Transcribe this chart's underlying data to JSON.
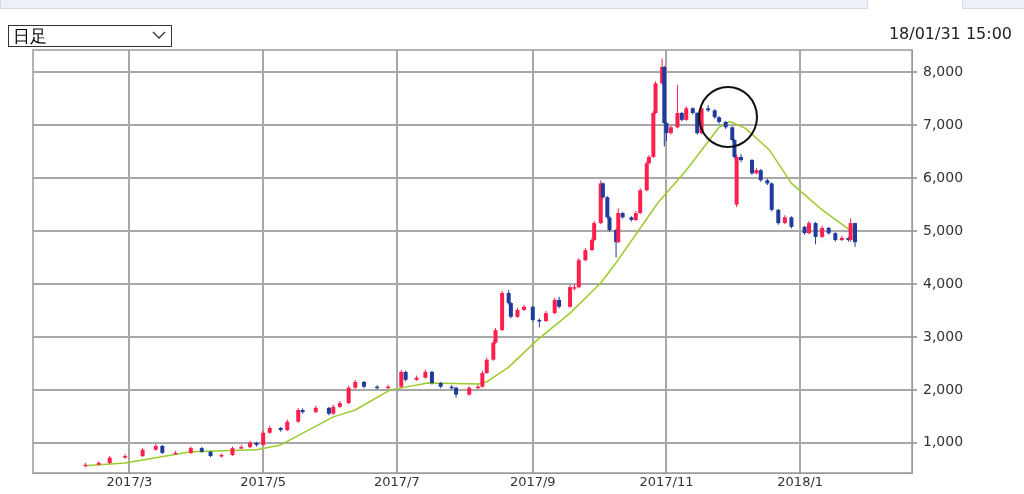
{
  "chart_data": {
    "type": "candlestick",
    "annotations": [
      "日足",
      "18/01/31 15:00"
    ],
    "xlim": [
      "2017-01-16",
      "2018-02-21"
    ],
    "xticks": [
      {
        "value": "2017-03-01",
        "label": "2017/3"
      },
      {
        "value": "2017-05-01",
        "label": "2017/5"
      },
      {
        "value": "2017-07-01",
        "label": "2017/7"
      },
      {
        "value": "2017-09-01",
        "label": "2017/9"
      },
      {
        "value": "2017-11-01",
        "label": "2017/11"
      },
      {
        "value": "2018-01-01",
        "label": "2018/1"
      }
    ],
    "ylim": [
      430,
      8420
    ],
    "yticks": [
      {
        "value": 1000,
        "label": "1,000"
      },
      {
        "value": 2000,
        "label": "2,000"
      },
      {
        "value": 3000,
        "label": "3,000"
      },
      {
        "value": 4000,
        "label": "4,000"
      },
      {
        "value": 5000,
        "label": "5,000"
      },
      {
        "value": 6000,
        "label": "6,000"
      },
      {
        "value": 7000,
        "label": "7,000"
      },
      {
        "value": 8000,
        "label": "8,000"
      }
    ],
    "grid": true,
    "series": [
      {
        "type": "candlestick",
        "x": [
          "2017-02-09",
          "2017-02-15",
          "2017-02-20",
          "2017-02-27",
          "2017-03-07",
          "2017-03-13",
          "2017-03-16",
          "2017-03-22",
          "2017-03-29",
          "2017-04-03",
          "2017-04-07",
          "2017-04-12",
          "2017-04-17",
          "2017-04-21",
          "2017-04-25",
          "2017-04-28",
          "2017-05-01",
          "2017-05-04",
          "2017-05-09",
          "2017-05-12",
          "2017-05-17",
          "2017-05-19",
          "2017-05-25",
          "2017-05-31",
          "2017-06-02",
          "2017-06-05",
          "2017-06-09",
          "2017-06-12",
          "2017-06-16",
          "2017-06-22",
          "2017-06-27",
          "2017-07-03",
          "2017-07-05",
          "2017-07-10",
          "2017-07-14",
          "2017-07-17",
          "2017-07-21",
          "2017-07-26",
          "2017-07-28",
          "2017-08-03",
          "2017-08-07",
          "2017-08-09",
          "2017-08-11",
          "2017-08-14",
          "2017-08-15",
          "2017-08-18",
          "2017-08-21",
          "2017-08-22",
          "2017-08-25",
          "2017-08-28",
          "2017-09-01",
          "2017-09-04",
          "2017-09-07",
          "2017-09-11",
          "2017-09-13",
          "2017-09-18",
          "2017-09-20",
          "2017-09-22",
          "2017-09-25",
          "2017-09-28",
          "2017-09-29",
          "2017-10-02",
          "2017-10-03",
          "2017-10-05",
          "2017-10-06",
          "2017-10-09",
          "2017-10-10",
          "2017-10-12",
          "2017-10-16",
          "2017-10-18",
          "2017-10-20",
          "2017-10-23",
          "2017-10-24",
          "2017-10-26",
          "2017-10-27",
          "2017-10-30",
          "2017-10-31",
          "2017-11-01",
          "2017-11-03",
          "2017-11-06",
          "2017-11-08",
          "2017-11-10",
          "2017-11-13",
          "2017-11-15",
          "2017-11-17",
          "2017-11-20",
          "2017-11-23",
          "2017-11-25",
          "2017-11-28",
          "2017-12-01",
          "2017-12-02",
          "2017-12-03",
          "2017-12-05",
          "2017-12-10",
          "2017-12-12",
          "2017-12-14",
          "2017-12-17",
          "2017-12-19",
          "2017-12-22",
          "2017-12-25",
          "2017-12-28",
          "2018-01-03",
          "2018-01-05",
          "2018-01-08",
          "2018-01-11",
          "2018-01-14",
          "2018-01-17",
          "2018-01-20",
          "2018-01-23",
          "2018-01-24",
          "2018-01-26"
        ],
        "ohlc": [
          [
            560,
            620,
            540,
            585
          ],
          [
            585,
            650,
            570,
            620
          ],
          [
            620,
            750,
            600,
            720
          ],
          [
            720,
            790,
            700,
            750
          ],
          [
            750,
            900,
            730,
            870
          ],
          [
            870,
            980,
            850,
            940
          ],
          [
            940,
            960,
            790,
            810
          ],
          [
            810,
            850,
            780,
            810
          ],
          [
            810,
            930,
            790,
            900
          ],
          [
            900,
            920,
            810,
            830
          ],
          [
            830,
            850,
            730,
            750
          ],
          [
            750,
            800,
            720,
            770
          ],
          [
            770,
            930,
            750,
            900
          ],
          [
            900,
            960,
            880,
            920
          ],
          [
            920,
            1040,
            900,
            1000
          ],
          [
            1000,
            1020,
            930,
            960
          ],
          [
            960,
            1220,
            950,
            1190
          ],
          [
            1190,
            1320,
            1170,
            1280
          ],
          [
            1280,
            1300,
            1210,
            1240
          ],
          [
            1240,
            1440,
            1220,
            1400
          ],
          [
            1400,
            1660,
            1380,
            1620
          ],
          [
            1620,
            1650,
            1550,
            1580
          ],
          [
            1580,
            1700,
            1560,
            1660
          ],
          [
            1660,
            1680,
            1520,
            1550
          ],
          [
            1550,
            1720,
            1530,
            1680
          ],
          [
            1680,
            1790,
            1660,
            1750
          ],
          [
            1750,
            2080,
            1730,
            2040
          ],
          [
            2040,
            2190,
            2020,
            2150
          ],
          [
            2150,
            2170,
            2030,
            2060
          ],
          [
            2060,
            2090,
            2010,
            2040
          ],
          [
            2040,
            2100,
            2020,
            2060
          ],
          [
            2060,
            2380,
            2040,
            2340
          ],
          [
            2340,
            2360,
            2160,
            2190
          ],
          [
            2190,
            2270,
            2170,
            2230
          ],
          [
            2230,
            2380,
            2210,
            2340
          ],
          [
            2340,
            2360,
            2100,
            2130
          ],
          [
            2130,
            2150,
            2030,
            2060
          ],
          [
            2060,
            2090,
            2010,
            2040
          ],
          [
            2040,
            2060,
            1850,
            1910
          ],
          [
            1910,
            2070,
            1890,
            2040
          ],
          [
            2040,
            2100,
            2020,
            2060
          ],
          [
            2060,
            2360,
            2040,
            2320
          ],
          [
            2320,
            2610,
            2300,
            2570
          ],
          [
            2570,
            2930,
            2550,
            2890
          ],
          [
            2890,
            3170,
            2870,
            3130
          ],
          [
            3130,
            3870,
            3110,
            3830
          ],
          [
            3830,
            3890,
            3610,
            3640
          ],
          [
            3640,
            3660,
            3350,
            3380
          ],
          [
            3380,
            3550,
            3360,
            3510
          ],
          [
            3510,
            3610,
            3490,
            3570
          ],
          [
            3570,
            3590,
            3290,
            3320
          ],
          [
            3320,
            3350,
            3180,
            3300
          ],
          [
            3300,
            3490,
            3280,
            3450
          ],
          [
            3450,
            3740,
            3430,
            3700
          ],
          [
            3700,
            3760,
            3540,
            3570
          ],
          [
            3570,
            3980,
            3550,
            3940
          ],
          [
            3940,
            4000,
            3880,
            3940
          ],
          [
            3940,
            4490,
            3920,
            4450
          ],
          [
            4450,
            4680,
            4430,
            4640
          ],
          [
            4640,
            4870,
            4620,
            4830
          ],
          [
            4830,
            5190,
            4810,
            5150
          ],
          [
            5150,
            5960,
            5130,
            5900
          ],
          [
            5900,
            5920,
            5610,
            5640
          ],
          [
            5640,
            5660,
            5230,
            5260
          ],
          [
            5260,
            5280,
            4990,
            5020
          ],
          [
            5020,
            5040,
            4500,
            4790
          ],
          [
            4790,
            5430,
            4770,
            5340
          ],
          [
            5340,
            5360,
            5230,
            5260
          ],
          [
            5260,
            5280,
            5180,
            5210
          ],
          [
            5210,
            5380,
            5190,
            5340
          ],
          [
            5340,
            5810,
            5320,
            5770
          ],
          [
            5770,
            6320,
            5750,
            6280
          ],
          [
            6280,
            6440,
            6260,
            6400
          ],
          [
            6400,
            7270,
            6380,
            7230
          ],
          [
            7230,
            7830,
            7210,
            7790
          ],
          [
            7790,
            8260,
            7760,
            8100
          ],
          [
            8100,
            8120,
            6600,
            7040
          ],
          [
            7040,
            7060,
            6700,
            6850
          ],
          [
            6850,
            7000,
            6820,
            6960
          ],
          [
            6960,
            7760,
            6940,
            7230
          ],
          [
            7230,
            7250,
            7070,
            7100
          ],
          [
            7100,
            7360,
            7080,
            7320
          ],
          [
            7320,
            7340,
            7200,
            7230
          ],
          [
            7230,
            7250,
            6820,
            6850
          ],
          [
            6850,
            7360,
            6830,
            7320
          ],
          [
            7320,
            7380,
            7250,
            7280
          ],
          [
            7280,
            7300,
            7120,
            7150
          ],
          [
            7150,
            7170,
            7030,
            7060
          ],
          [
            7060,
            7080,
            6930,
            6960
          ],
          [
            6960,
            6980,
            6690,
            6720
          ],
          [
            6720,
            6740,
            6370,
            6400
          ],
          [
            5500,
            6450,
            5450,
            6400
          ],
          [
            6400,
            6450,
            6300,
            6340
          ],
          [
            6340,
            6360,
            6060,
            6090
          ],
          [
            6090,
            6190,
            6070,
            6150
          ],
          [
            6150,
            6170,
            5930,
            5960
          ],
          [
            5960,
            5990,
            5870,
            5900
          ],
          [
            5900,
            5920,
            5370,
            5400
          ],
          [
            5400,
            5420,
            5120,
            5150
          ],
          [
            5150,
            5300,
            5130,
            5260
          ],
          [
            5260,
            5280,
            5050,
            5080
          ],
          [
            5080,
            5100,
            4930,
            4960
          ],
          [
            4960,
            5190,
            4940,
            5150
          ],
          [
            5150,
            5170,
            4750,
            4890
          ],
          [
            4890,
            5100,
            4870,
            5060
          ],
          [
            5060,
            5080,
            4930,
            4960
          ],
          [
            4960,
            4980,
            4800,
            4830
          ],
          [
            4830,
            4910,
            4810,
            4870
          ],
          [
            4870,
            4890,
            4800,
            4830
          ],
          [
            4830,
            5240,
            4800,
            5150
          ],
          [
            5150,
            5160,
            4700,
            4790
          ]
        ],
        "colors": [
          "#ff1f4f",
          "#ff1f4f",
          "#ff1f4f",
          "#ff1f4f",
          "#ff1f4f",
          "#ff1f4f",
          "#1f3c9c",
          "#ff1f4f",
          "#ff1f4f",
          "#1f3c9c",
          "#1f3c9c",
          "#ff1f4f",
          "#ff1f4f",
          "#ff1f4f",
          "#ff1f4f",
          "#1f3c9c",
          "#ff1f4f",
          "#ff1f4f",
          "#1f3c9c",
          "#ff1f4f",
          "#ff1f4f",
          "#1f3c9c",
          "#ff1f4f",
          "#1f3c9c",
          "#ff1f4f",
          "#ff1f4f",
          "#ff1f4f",
          "#ff1f4f",
          "#1f3c9c",
          "#1f3c9c",
          "#ff1f4f",
          "#ff1f4f",
          "#1f3c9c",
          "#ff1f4f",
          "#ff1f4f",
          "#1f3c9c",
          "#1f3c9c",
          "#1f3c9c",
          "#1f3c9c",
          "#ff1f4f",
          "#ff1f4f",
          "#ff1f4f",
          "#ff1f4f",
          "#ff1f4f",
          "#ff1f4f",
          "#ff1f4f",
          "#1f3c9c",
          "#1f3c9c",
          "#ff1f4f",
          "#ff1f4f",
          "#1f3c9c",
          "#1f3c9c",
          "#ff1f4f",
          "#ff1f4f",
          "#1f3c9c",
          "#ff1f4f",
          "#ff1f4f",
          "#ff1f4f",
          "#ff1f4f",
          "#ff1f4f",
          "#ff1f4f",
          "#ff1f4f",
          "#1f3c9c",
          "#1f3c9c",
          "#1f3c9c",
          "#1f3c9c",
          "#ff1f4f",
          "#1f3c9c",
          "#1f3c9c",
          "#ff1f4f",
          "#ff1f4f",
          "#ff1f4f",
          "#ff1f4f",
          "#ff1f4f",
          "#ff1f4f",
          "#ff1f4f",
          "#1f3c9c",
          "#1f3c9c",
          "#ff1f4f",
          "#ff1f4f",
          "#1f3c9c",
          "#ff1f4f",
          "#1f3c9c",
          "#1f3c9c",
          "#ff1f4f",
          "#1f3c9c",
          "#1f3c9c",
          "#1f3c9c",
          "#1f3c9c",
          "#1f3c9c",
          "#1f3c9c",
          "#ff1f4f",
          "#1f3c9c",
          "#1f3c9c",
          "#ff1f4f",
          "#1f3c9c",
          "#1f3c9c",
          "#1f3c9c",
          "#1f3c9c",
          "#ff1f4f",
          "#1f3c9c",
          "#1f3c9c",
          "#ff1f4f",
          "#1f3c9c",
          "#ff1f4f",
          "#1f3c9c",
          "#1f3c9c",
          "#ff1f4f",
          "#1f3c9c",
          "#ff1f4f",
          "#1f3c9c"
        ]
      },
      {
        "type": "line",
        "color": "#9ccc2c",
        "x": [
          "2017-02-10",
          "2017-02-27",
          "2017-03-29",
          "2017-04-28",
          "2017-05-09",
          "2017-06-02",
          "2017-06-12",
          "2017-06-28",
          "2017-07-15",
          "2017-08-07",
          "2017-08-11",
          "2017-08-21",
          "2017-09-03",
          "2017-09-18",
          "2017-10-02",
          "2017-10-09",
          "2017-10-28",
          "2017-11-10",
          "2017-11-25",
          "2017-11-30",
          "2017-12-07",
          "2017-12-18",
          "2017-12-28",
          "2018-01-11",
          "2018-01-25"
        ],
        "values": [
          570,
          620,
          830,
          870,
          960,
          1490,
          1620,
          2000,
          2130,
          2110,
          2150,
          2430,
          2940,
          3450,
          4020,
          4400,
          5530,
          6150,
          6960,
          7070,
          6940,
          6530,
          5900,
          5400,
          4980
        ]
      }
    ]
  }
}
